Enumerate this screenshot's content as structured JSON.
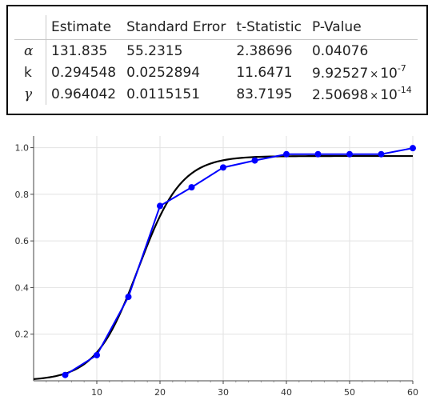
{
  "table": {
    "headers": [
      "Estimate",
      "Standard Error",
      "t-Statistic",
      "P-Value"
    ],
    "rows": [
      {
        "param": "α",
        "estimate": "131.835",
        "std_error": "55.2315",
        "t_stat": "2.38696",
        "p_mantissa": "0.04076",
        "p_exponent": ""
      },
      {
        "param": "k",
        "estimate": "0.294548",
        "std_error": "0.0252894",
        "t_stat": "11.6471",
        "p_mantissa": "9.92527",
        "p_exponent": "-7"
      },
      {
        "param": "γ",
        "estimate": "0.964042",
        "std_error": "0.0115151",
        "t_stat": "83.7195",
        "p_mantissa": "2.50698",
        "p_exponent": "-14"
      }
    ],
    "times_symbol": "×",
    "exp_base": "10"
  },
  "chart_data": {
    "type": "line",
    "xlim": [
      0,
      60
    ],
    "ylim": [
      0,
      1.05
    ],
    "xticks": [
      10,
      20,
      30,
      40,
      50,
      60
    ],
    "yticks": [
      0.2,
      0.4,
      0.6,
      0.8,
      1.0
    ],
    "ytick_labels": [
      "0.2",
      "0.4",
      "0.6",
      "0.8",
      "1.0"
    ],
    "grid": true,
    "series": [
      {
        "color": "#0000ff",
        "markers": true,
        "x": [
          5,
          10,
          15,
          20,
          25,
          30,
          35,
          40,
          45,
          50,
          55,
          60
        ],
        "y": [
          0.025,
          0.11,
          0.36,
          0.75,
          0.83,
          0.915,
          0.945,
          0.972,
          0.972,
          0.972,
          0.972,
          0.998
        ]
      },
      {
        "color": "#000000",
        "markers": false,
        "model": "logistic",
        "params": {
          "alpha": 131.835,
          "k": 0.294548,
          "gamma": 0.964042
        }
      }
    ]
  }
}
